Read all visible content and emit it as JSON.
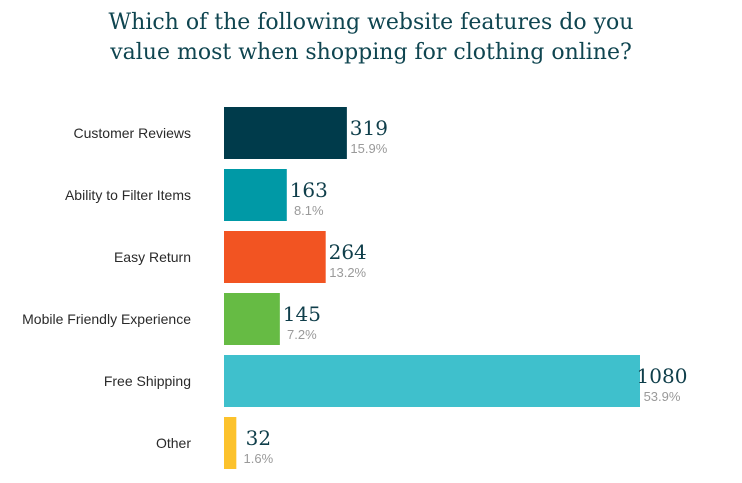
{
  "title": {
    "line1": "Which of the following website features do you",
    "line2": "value most when shopping for clothing online?"
  },
  "chart_data": {
    "type": "bar",
    "orientation": "horizontal",
    "title": "Which of the following website features do you value most when shopping for clothing online?",
    "categories": [
      "Customer Reviews",
      "Ability to Filter Items",
      "Easy Return",
      "Mobile Friendly Experience",
      "Free Shipping",
      "Other"
    ],
    "values": [
      319,
      163,
      264,
      145,
      1080,
      32
    ],
    "percent_labels": [
      "15.9%",
      "8.1%",
      "13.2%",
      "7.2%",
      "53.9%",
      "1.6%"
    ],
    "colors": [
      "#003b4b",
      "#0099a6",
      "#f25422",
      "#66bb44",
      "#3fc0cc",
      "#fcc22c"
    ],
    "xlim": [
      0,
      1080
    ],
    "grid": false,
    "legend": "none"
  }
}
